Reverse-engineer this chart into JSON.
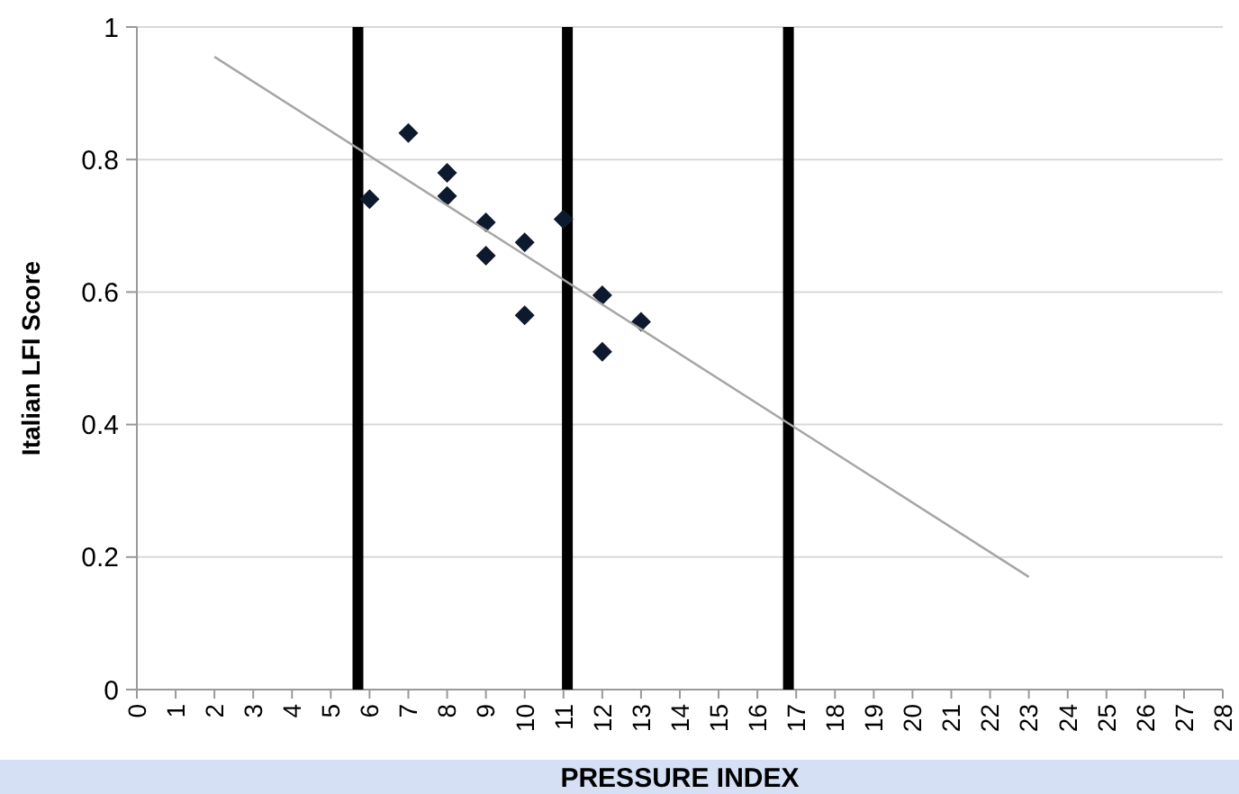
{
  "chart_data": {
    "type": "scatter",
    "xlabel": "PRESSURE INDEX",
    "ylabel": "Italian LFI  Score",
    "xlim": [
      0,
      28
    ],
    "xticks": [
      0,
      1,
      2,
      3,
      4,
      5,
      6,
      7,
      8,
      9,
      10,
      11,
      12,
      13,
      14,
      15,
      16,
      17,
      18,
      19,
      20,
      21,
      22,
      23,
      24,
      25,
      26,
      27,
      28
    ],
    "ylim": [
      0,
      1
    ],
    "yticks": [
      0,
      0.2,
      0.4,
      0.6,
      0.8,
      1
    ],
    "grid": "y",
    "marker": "diamond",
    "series": [
      {
        "color": "#0d1a2e",
        "x": [
          6,
          7,
          8,
          8,
          9,
          9,
          10,
          10,
          11,
          12,
          12,
          13
        ],
        "values": [
          0.74,
          0.84,
          0.78,
          0.745,
          0.705,
          0.655,
          0.675,
          0.565,
          0.71,
          0.595,
          0.51,
          0.555
        ]
      },
      {
        "type": "line",
        "color": "#a6a6a6",
        "marker": "none",
        "x": [
          2,
          23
        ],
        "values": [
          0.955,
          0.17
        ]
      }
    ],
    "ref_lines": [
      {
        "axis": "x",
        "value": 5.7,
        "color": "#000000"
      },
      {
        "axis": "x",
        "value": 11.1,
        "color": "#000000"
      },
      {
        "axis": "x",
        "value": 16.8,
        "color": "#000000"
      }
    ]
  }
}
